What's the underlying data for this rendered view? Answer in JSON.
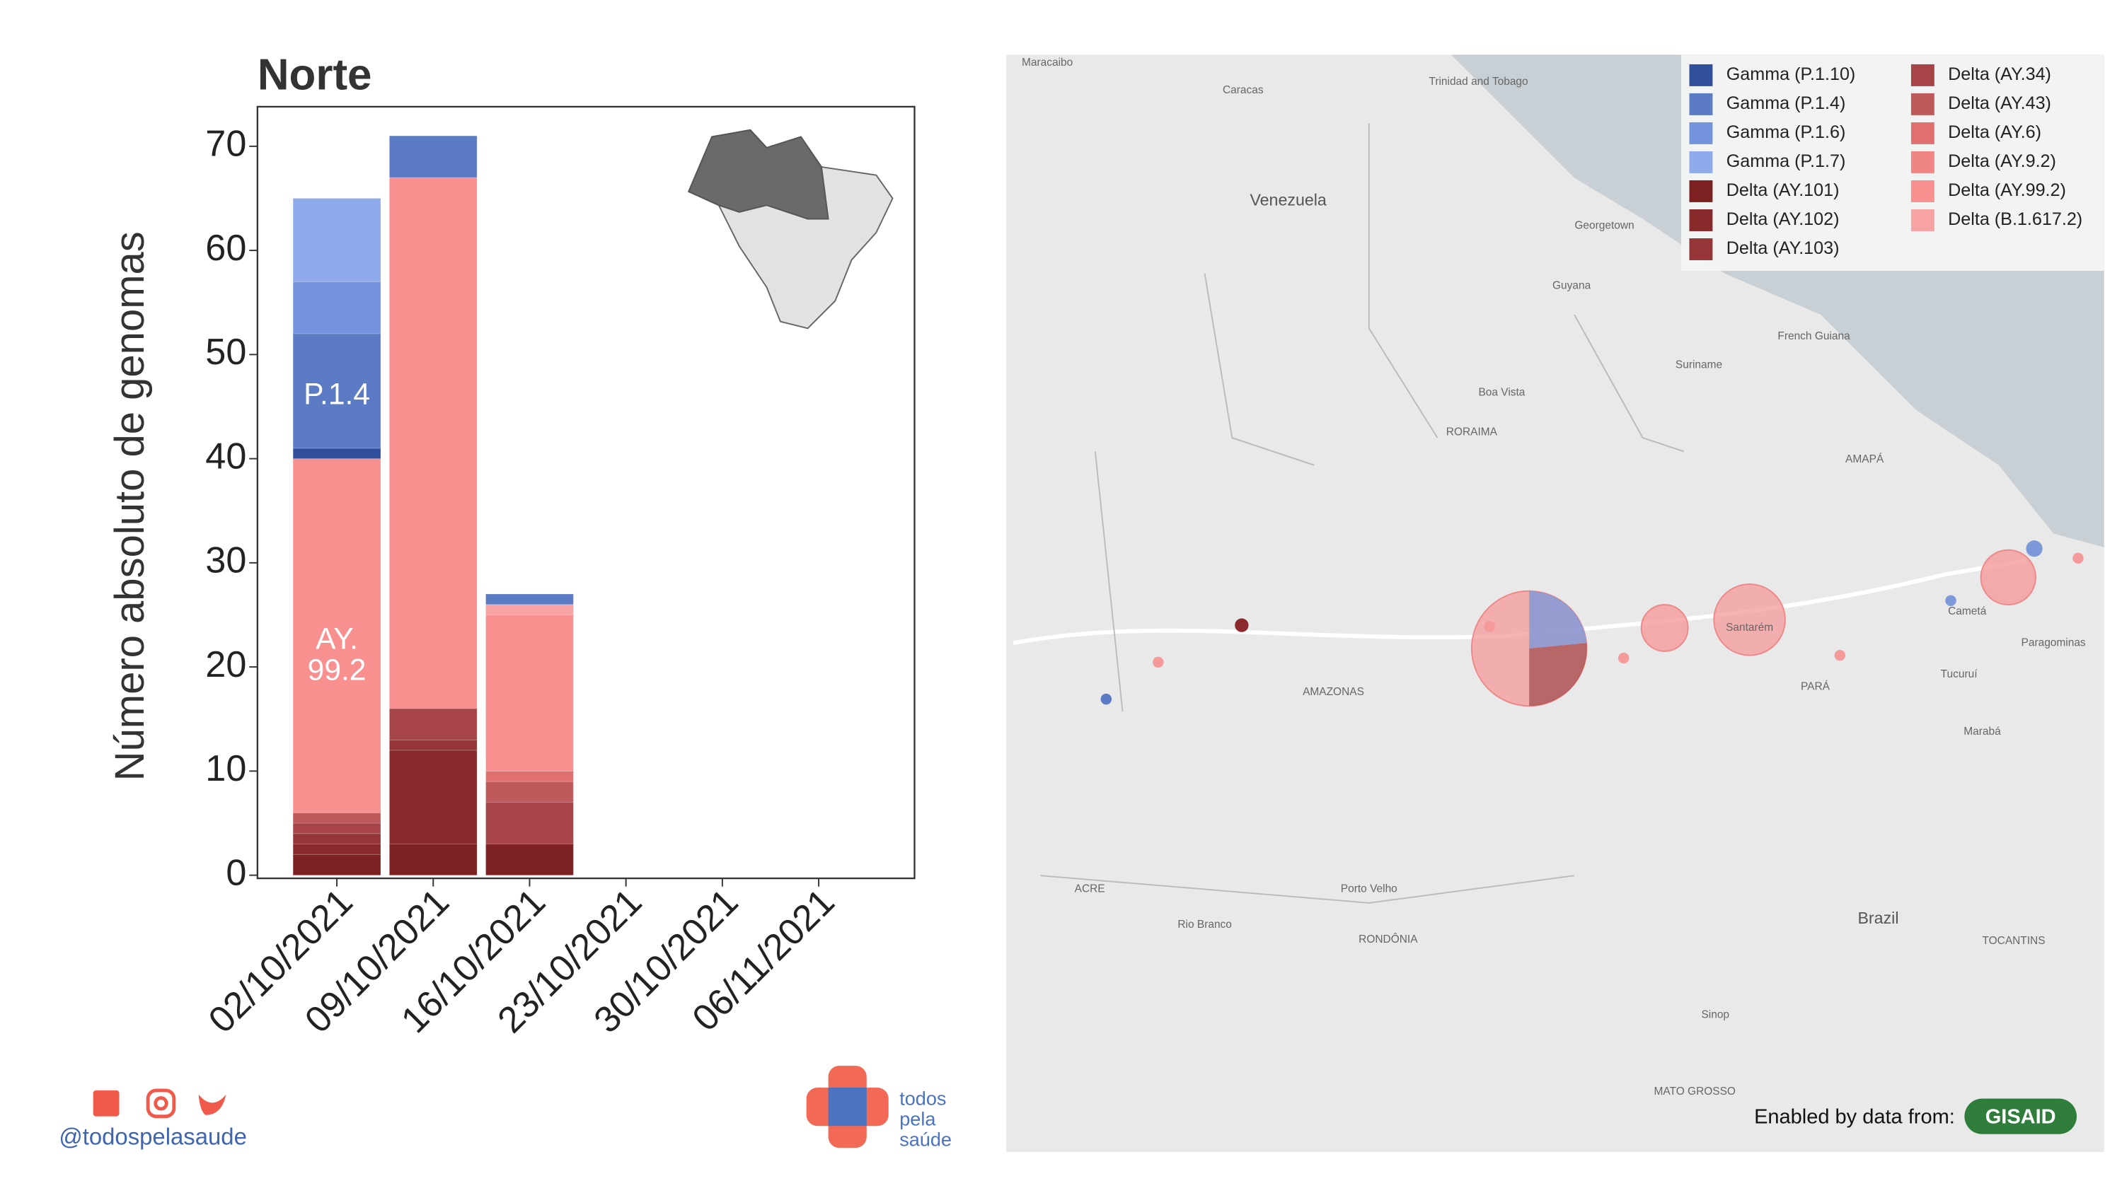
{
  "chart_data": {
    "type": "bar",
    "stacked": true,
    "title": "Norte",
    "ylabel": "Número absoluto de genomas",
    "categories": [
      "02/10/2021",
      "09/10/2021",
      "16/10/2021",
      "23/10/2021",
      "30/10/2021",
      "06/11/2021"
    ],
    "ylim": [
      -0.3,
      73.8
    ],
    "yticks": [
      0,
      10,
      20,
      30,
      40,
      50,
      60,
      70
    ],
    "series": [
      {
        "name": "Delta (AY.101)",
        "color": "#7d2022",
        "values": [
          2,
          3,
          3,
          0,
          0,
          0
        ]
      },
      {
        "name": "Delta (AY.102)",
        "color": "#882a2c",
        "values": [
          1,
          9,
          0,
          0,
          0,
          0
        ]
      },
      {
        "name": "Delta (AY.103)",
        "color": "#953537",
        "values": [
          1,
          1,
          0,
          0,
          0,
          0
        ]
      },
      {
        "name": "Delta (AY.34)",
        "color": "#a64447",
        "values": [
          1,
          3,
          4,
          0,
          0,
          0
        ]
      },
      {
        "name": "Delta (AY.43)",
        "color": "#bf5a5c",
        "values": [
          1,
          0,
          2,
          0,
          0,
          0
        ]
      },
      {
        "name": "Delta (AY.6)",
        "color": "#e07070",
        "values": [
          0,
          0,
          1,
          0,
          0,
          0
        ]
      },
      {
        "name": "Delta (AY.9.2)",
        "color": "#f08585",
        "values": [
          0,
          0,
          0,
          0,
          0,
          0
        ]
      },
      {
        "name": "Delta (AY.99.2)",
        "color": "#f89090",
        "values": [
          34,
          51,
          15,
          0,
          0,
          0
        ]
      },
      {
        "name": "Delta (B.1.617.2)",
        "color": "#f7a3a3",
        "values": [
          0,
          0,
          1,
          0,
          0,
          0
        ]
      },
      {
        "name": "Gamma (P.1.10)",
        "color": "#2f4f9b",
        "values": [
          1,
          0,
          0,
          0,
          0,
          0
        ]
      },
      {
        "name": "Gamma (P.1.4)",
        "color": "#5b7cc4",
        "values": [
          11,
          4,
          1,
          0,
          0,
          0
        ]
      },
      {
        "name": "Gamma (P.1.6)",
        "color": "#7393dc",
        "values": [
          5,
          0,
          0,
          0,
          0,
          0
        ]
      },
      {
        "name": "Gamma (P.1.7)",
        "color": "#8eaaea",
        "values": [
          8,
          0,
          0,
          0,
          0,
          0
        ]
      }
    ],
    "annotations": [
      [
        "P.1.4"
      ],
      [
        "AY.",
        "99.2"
      ]
    ],
    "legend_order": [
      9,
      10,
      11,
      12,
      0,
      1,
      2,
      3,
      4,
      5,
      6,
      7,
      8
    ]
  },
  "map": {
    "labels": [
      "Venezuela",
      "Guyana",
      "Suriname",
      "French Guiana",
      "Brazil",
      "RORAIMA",
      "AMAZONAS",
      "PARÁ",
      "AMAPÁ",
      "ACRE",
      "RONDÔNIA",
      "TOCANTINS",
      "MATO GROSSO",
      "Caracas",
      "Maracaibo",
      "Boa Vista",
      "Porto Velho",
      "Rio Branco",
      "Santarém",
      "Paragominas",
      "Marabá",
      "Cametá",
      "Tucuruí",
      "Sinop",
      "Georgetown",
      "Trinidad and Tobago"
    ],
    "credit": "Enabled by data from:",
    "credit_logo": "GISAID"
  },
  "footer": {
    "handle": "@todospelasaude",
    "logo": [
      "todos",
      "pela",
      "saúde"
    ]
  }
}
